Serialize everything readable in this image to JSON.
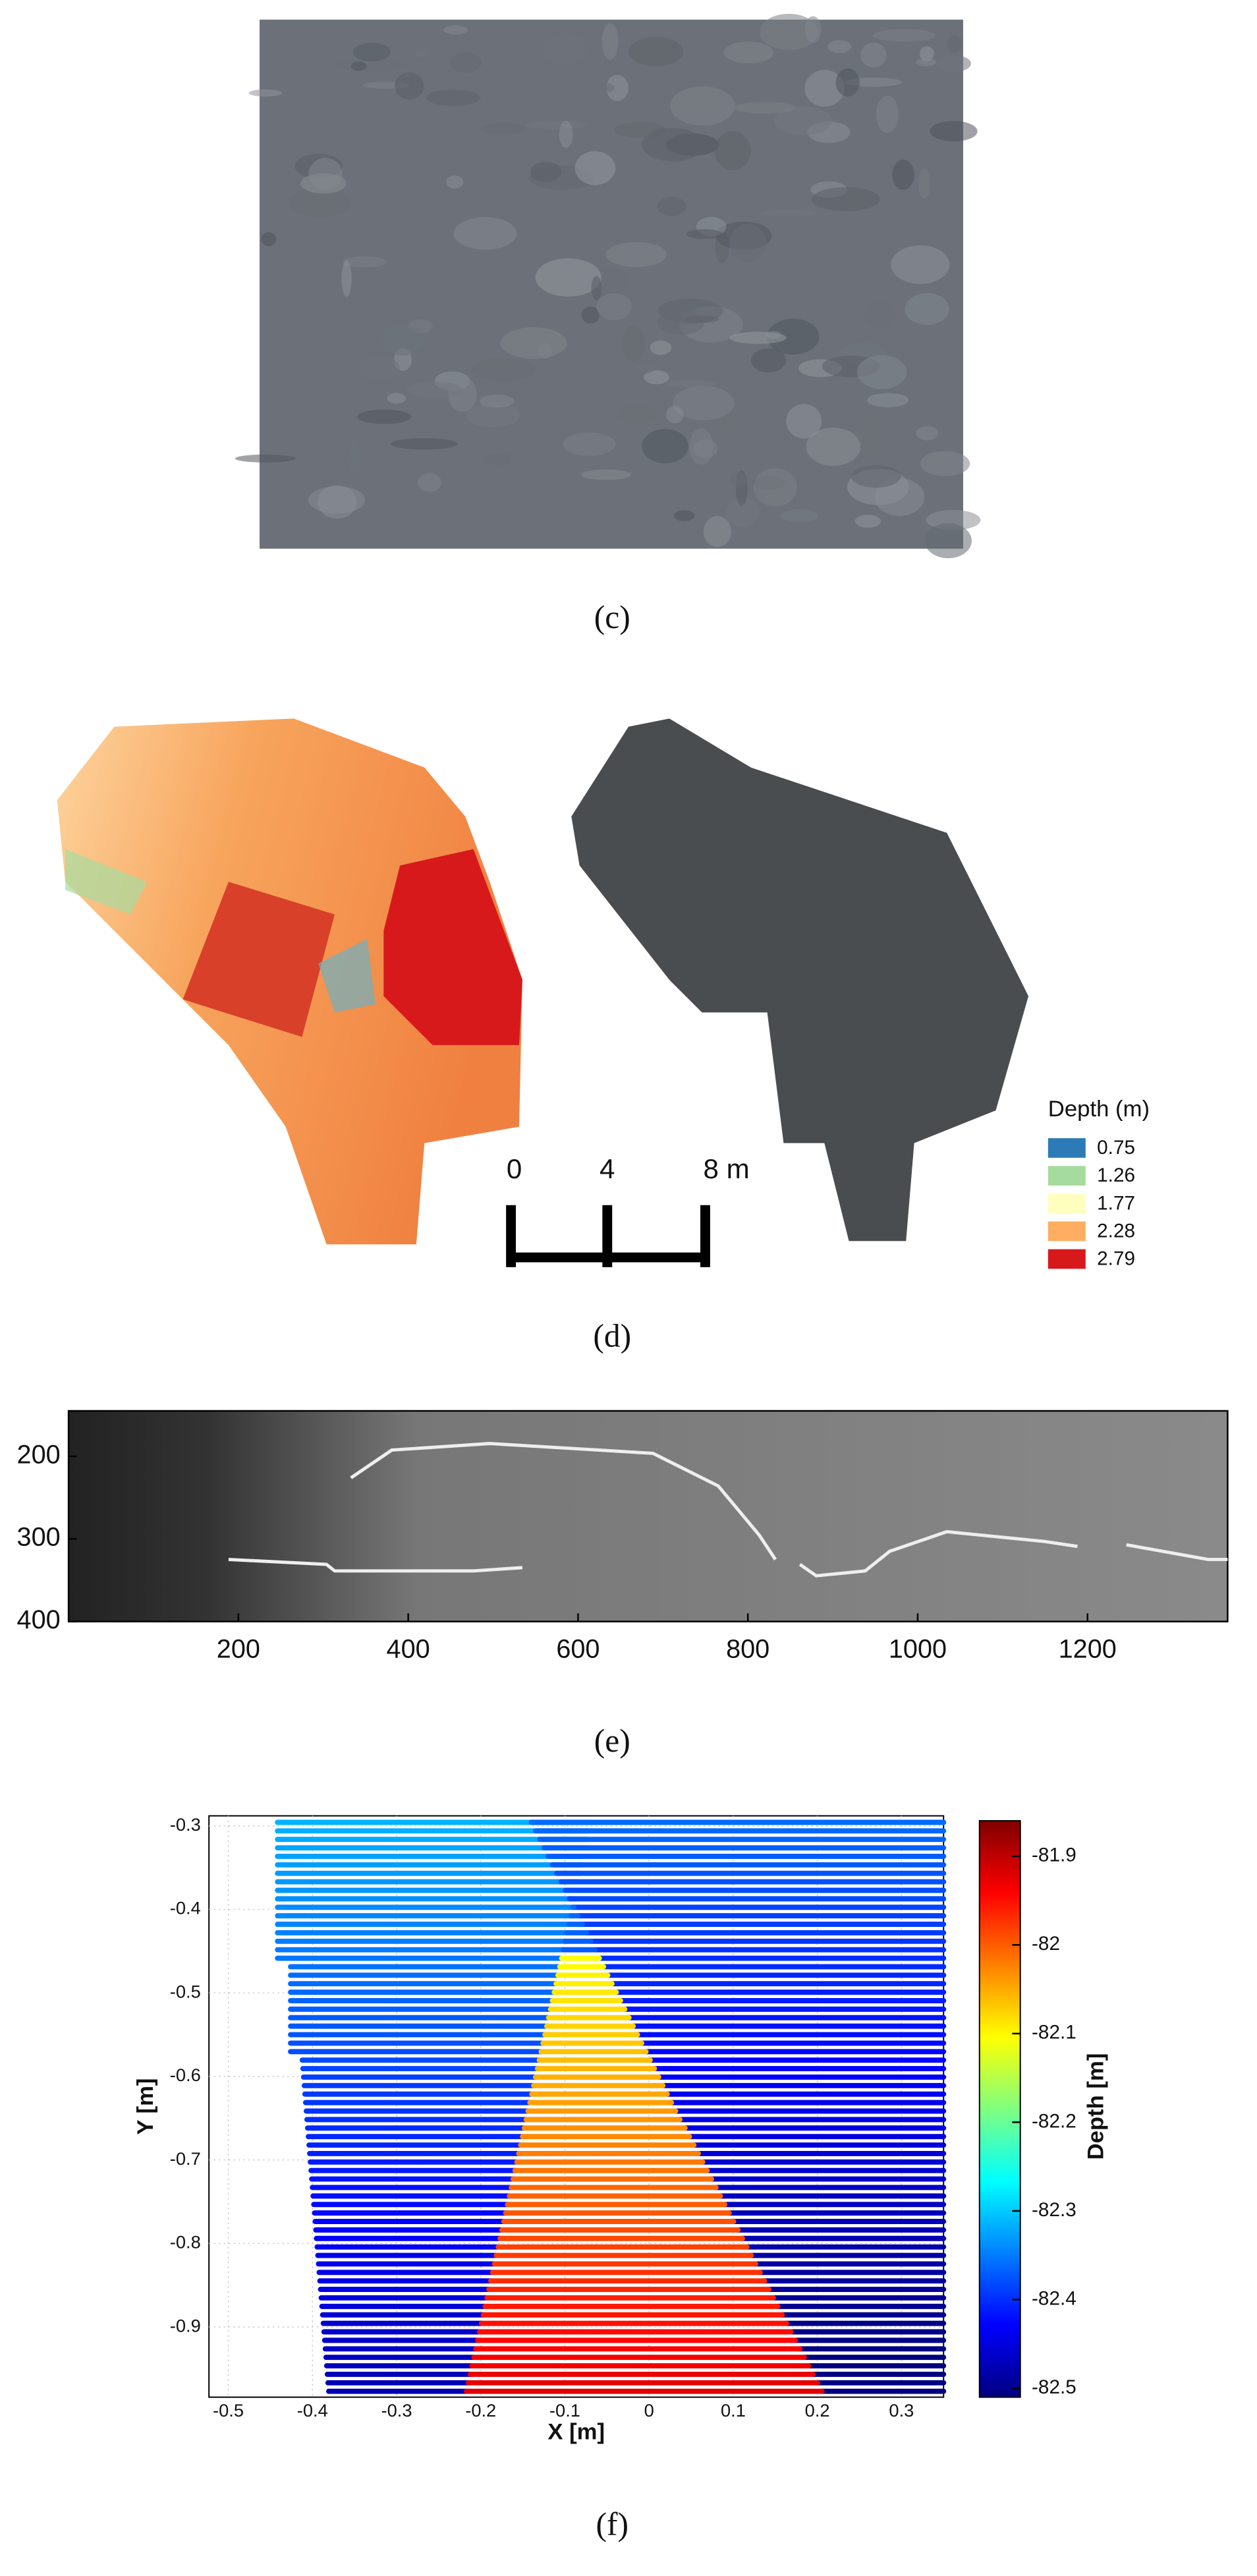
{
  "panels": [
    {
      "label": "(c)"
    },
    {
      "label": "(d)",
      "legend": {
        "title": "Depth (m)",
        "entries": [
          {
            "label": 0.75,
            "color": "#2c7bb6"
          },
          {
            "label": 1.26,
            "color": "#a6dba0"
          },
          {
            "label": 1.77,
            "color": "#ffffbf"
          },
          {
            "label": 2.28,
            "color": "#fdae61"
          },
          {
            "label": 2.79,
            "color": "#d7191c"
          }
        ]
      },
      "scale_bar": {
        "labels": [
          "0",
          "4",
          "8 m"
        ]
      }
    },
    {
      "label": "(e)",
      "xlim": [
        0,
        1365
      ],
      "ylim": [
        145,
        400
      ],
      "xticks": [
        200,
        400,
        600,
        800,
        1000,
        1200
      ],
      "yticks": [
        200,
        300,
        400
      ]
    },
    {
      "label": "(f)",
      "xlabel": "X [m]",
      "ylabel": "Y [m]",
      "xlim": [
        -0.523,
        0.35
      ],
      "ylim": [
        -0.984,
        -0.288
      ],
      "xticks": [
        -0.5,
        -0.4,
        -0.3,
        -0.2,
        -0.1,
        0,
        0.1,
        0.2,
        0.3
      ],
      "yticks": [
        -0.3,
        -0.4,
        -0.5,
        -0.6,
        -0.7,
        -0.8,
        -0.9
      ],
      "colorbar": {
        "label": "Depth [m]",
        "lim": [
          -82.51,
          -81.86
        ],
        "ticks": [
          -81.9,
          -82,
          -82.1,
          -82.2,
          -82.3,
          -82.4,
          -82.5
        ]
      }
    }
  ]
}
